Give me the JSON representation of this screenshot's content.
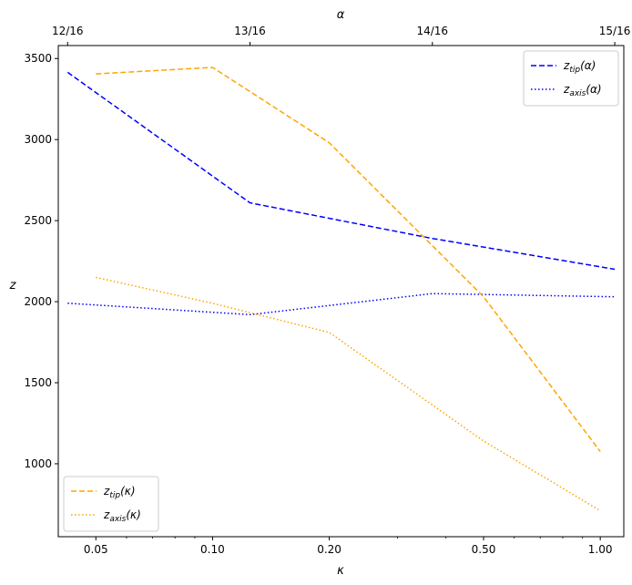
{
  "chart_data": {
    "type": "line",
    "ylabel": "z",
    "ylim": [
      550,
      3580
    ],
    "y_ticks": [
      1000,
      1500,
      2000,
      2500,
      3000,
      3500
    ],
    "bottom_axis": {
      "label": "κ",
      "scale": "log",
      "range": [
        0.04,
        1.15
      ],
      "ticks": [
        0.05,
        0.1,
        0.2,
        0.5,
        1.0
      ],
      "tick_labels": [
        "0.05",
        "0.10",
        "0.20",
        "0.50",
        "1.00"
      ]
    },
    "top_axis": {
      "label": "α",
      "scale": "linear",
      "range": [
        0.7468,
        0.9406
      ],
      "ticks": [
        0.75,
        0.8125,
        0.875,
        0.9375
      ],
      "tick_labels": [
        "12/16",
        "13/16",
        "14/16",
        "15/16"
      ]
    },
    "series": [
      {
        "name": "z_tip(α)",
        "legend_main": "z",
        "legend_sub": "tip",
        "legend_arg": "(α)",
        "axis": "top",
        "color": "#0000ff",
        "dash": "dashed",
        "points": [
          [
            0.75,
            3415
          ],
          [
            0.8125,
            2610
          ],
          [
            0.875,
            2390
          ],
          [
            0.9375,
            2200
          ]
        ]
      },
      {
        "name": "z_axis(α)",
        "legend_main": "z",
        "legend_sub": "axis",
        "legend_arg": "(α)",
        "axis": "top",
        "color": "#0000ff",
        "dash": "dotted",
        "points": [
          [
            0.75,
            1990
          ],
          [
            0.8125,
            1920
          ],
          [
            0.875,
            2050
          ],
          [
            0.9375,
            2030
          ]
        ]
      },
      {
        "name": "z_tip(κ)",
        "legend_main": "z",
        "legend_sub": "tip",
        "legend_arg": "(κ)",
        "axis": "bottom",
        "color": "#ffa500",
        "dash": "dashed",
        "points": [
          [
            0.05,
            3405
          ],
          [
            0.1,
            3445
          ],
          [
            0.2,
            2980
          ],
          [
            0.5,
            2030
          ],
          [
            1.0,
            1075
          ]
        ]
      },
      {
        "name": "z_axis(κ)",
        "legend_main": "z",
        "legend_sub": "axis",
        "legend_arg": "(κ)",
        "axis": "bottom",
        "color": "#ffa500",
        "dash": "dotted",
        "points": [
          [
            0.05,
            2150
          ],
          [
            0.1,
            1990
          ],
          [
            0.2,
            1810
          ],
          [
            0.5,
            1140
          ],
          [
            1.0,
            710
          ]
        ]
      }
    ],
    "legends": [
      {
        "position": "upper right",
        "series": [
          0,
          1
        ]
      },
      {
        "position": "lower left",
        "series": [
          2,
          3
        ]
      }
    ],
    "grid": false
  }
}
